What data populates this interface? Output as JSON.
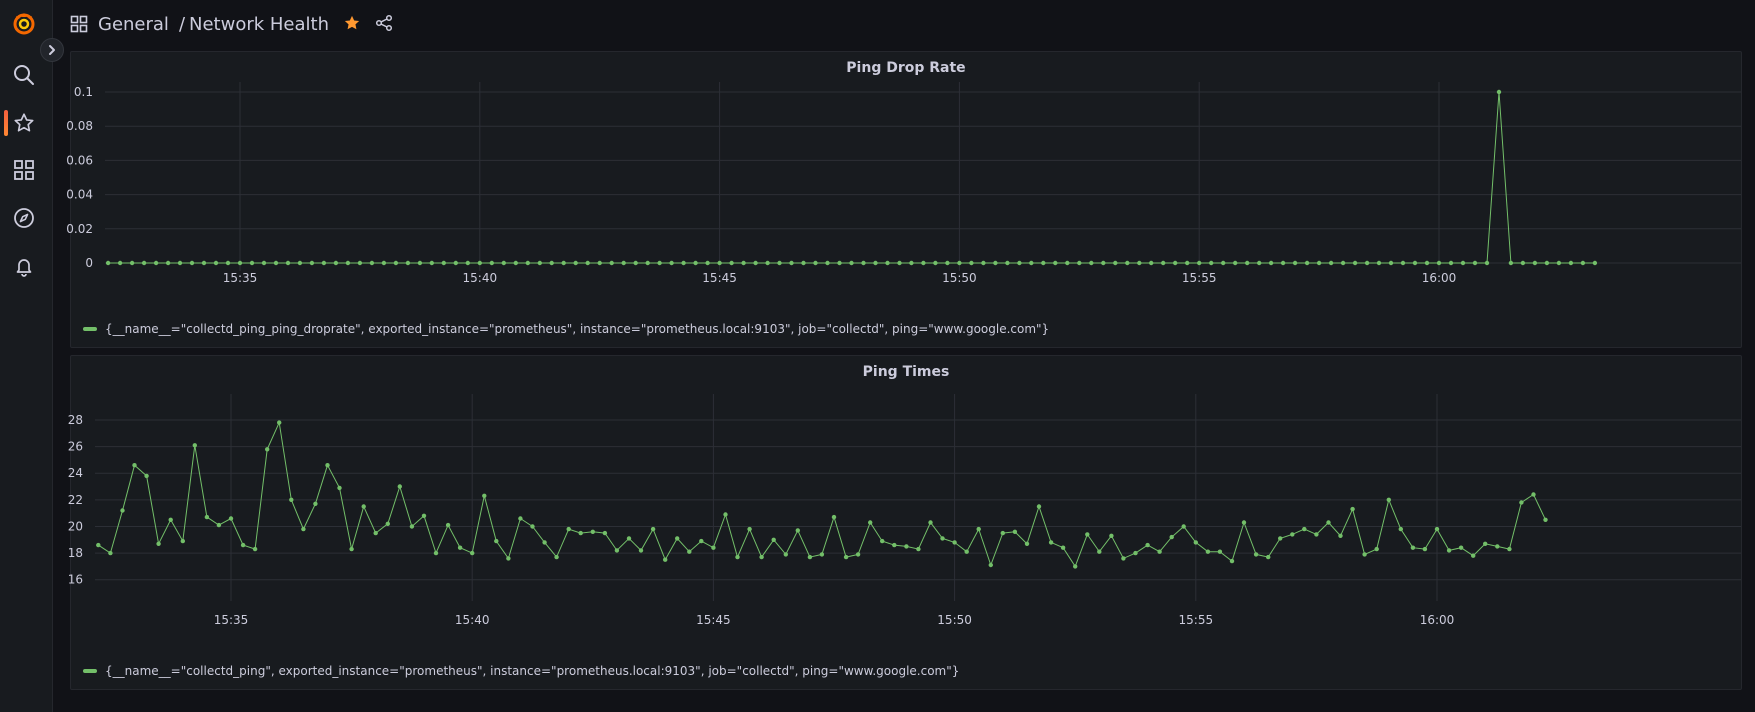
{
  "header": {
    "breadcrumb_folder": "General",
    "separator": "/",
    "dashboard_title": "Network Health"
  },
  "colors": {
    "series": "#73bf69",
    "star": "#ff9830",
    "background": "#111217",
    "panel": "#181b1f",
    "grid": "#2c2f36"
  },
  "sidebar": {
    "items": [
      {
        "icon": "grafana-logo-icon"
      },
      {
        "icon": "search-icon"
      },
      {
        "icon": "star-icon",
        "active": true
      },
      {
        "icon": "dashboards-grid-icon"
      },
      {
        "icon": "explore-compass-icon"
      },
      {
        "icon": "alerting-bell-icon"
      }
    ]
  },
  "chart_data": [
    {
      "type": "line",
      "title": "Ping Drop Rate",
      "x_tick_labels": [
        "15:35",
        "15:40",
        "15:45",
        "15:50",
        "15:55",
        "16:00"
      ],
      "y_tick_labels": [
        "0",
        "0.02",
        "0.04",
        "0.06",
        "0.08",
        "0.1"
      ],
      "ylim": [
        0,
        0.1
      ],
      "grid": true,
      "legend_position": "bottom-left",
      "x_start": "15:32:15",
      "x_interval_seconds": 15,
      "series": [
        {
          "name": "{__name__=\"collectd_ping_ping_droprate\", exported_instance=\"prometheus\", instance=\"prometheus.local:9103\", job=\"collectd\", ping=\"www.google.com\"}",
          "values": [
            0,
            0,
            0,
            0,
            0,
            0,
            0,
            0,
            0,
            0,
            0,
            0,
            0,
            0,
            0,
            0,
            0,
            0,
            0,
            0,
            0,
            0,
            0,
            0,
            0,
            0,
            0,
            0,
            0,
            0,
            0,
            0,
            0,
            0,
            0,
            0,
            0,
            0,
            0,
            0,
            0,
            0,
            0,
            0,
            0,
            0,
            0,
            0,
            0,
            0,
            0,
            0,
            0,
            0,
            0,
            0,
            0,
            0,
            0,
            0,
            0,
            0,
            0,
            0,
            0,
            0,
            0,
            0,
            0,
            0,
            0,
            0,
            0,
            0,
            0,
            0,
            0,
            0,
            0,
            0,
            0,
            0,
            0,
            0,
            0,
            0,
            0,
            0,
            0,
            0,
            0,
            0,
            0,
            0,
            0,
            0,
            0,
            0,
            0,
            0,
            0,
            0,
            0,
            0,
            0,
            0,
            0,
            0,
            0,
            0,
            0,
            0,
            0,
            0,
            0,
            0,
            0.1,
            0,
            0,
            0,
            0,
            0,
            0,
            0,
            0
          ]
        }
      ]
    },
    {
      "type": "line",
      "title": "Ping Times",
      "x_tick_labels": [
        "15:35",
        "15:40",
        "15:45",
        "15:50",
        "15:55",
        "16:00"
      ],
      "y_tick_labels": [
        "16",
        "18",
        "20",
        "22",
        "24",
        "26",
        "28"
      ],
      "ylim": [
        15,
        29.2
      ],
      "grid": true,
      "legend_position": "bottom-left",
      "x_start": "15:32:15",
      "x_interval_seconds": 15,
      "series": [
        {
          "name": "{__name__=\"collectd_ping\", exported_instance=\"prometheus\", instance=\"prometheus.local:9103\", job=\"collectd\", ping=\"www.google.com\"}",
          "values": [
            18.6,
            18.0,
            21.2,
            24.6,
            23.8,
            18.7,
            20.5,
            18.9,
            26.1,
            20.7,
            20.1,
            20.6,
            18.6,
            18.3,
            25.8,
            27.8,
            22.0,
            19.8,
            21.7,
            24.6,
            22.9,
            18.3,
            21.5,
            19.5,
            20.2,
            23.0,
            20.0,
            20.8,
            18.0,
            20.1,
            18.4,
            18.0,
            22.3,
            18.9,
            17.6,
            20.6,
            20.0,
            18.8,
            17.7,
            19.8,
            19.5,
            19.6,
            19.5,
            18.2,
            19.1,
            18.2,
            19.8,
            17.5,
            19.1,
            18.1,
            18.9,
            18.4,
            20.9,
            17.7,
            19.8,
            17.7,
            19.0,
            17.9,
            19.7,
            17.7,
            17.9,
            20.7,
            17.7,
            17.9,
            20.3,
            18.9,
            18.6,
            18.5,
            18.3,
            20.3,
            19.1,
            18.8,
            18.1,
            19.8,
            17.1,
            19.5,
            19.6,
            18.7,
            21.5,
            18.8,
            18.4,
            17.0,
            19.4,
            18.1,
            19.3,
            17.6,
            18.0,
            18.6,
            18.1,
            19.2,
            20.0,
            18.8,
            18.1,
            18.1,
            17.4,
            20.3,
            17.9,
            17.7,
            19.1,
            19.4,
            19.8,
            19.4,
            20.3,
            19.3,
            21.3,
            17.9,
            18.3,
            22.0,
            19.8,
            18.4,
            18.3,
            19.8,
            18.2,
            18.4,
            17.8,
            18.7,
            18.5,
            18.3,
            21.8,
            22.4,
            20.5
          ]
        }
      ]
    }
  ]
}
